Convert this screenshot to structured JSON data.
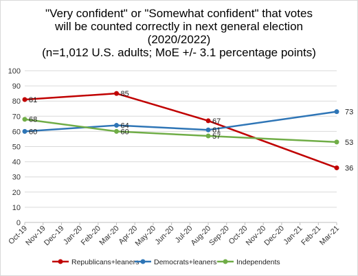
{
  "title_lines": [
    "\"Very confident\" or \"Somewhat confident\" that votes",
    "will be counted correctly in next general election",
    "(2020/2022)",
    "(n=1,012 U.S. adults; MoE +/- 3.1 percentage points)"
  ],
  "chart_data": {
    "type": "line",
    "title": "\"Very confident\" or \"Somewhat confident\" that votes will be counted correctly in next general election (2020/2022) (n=1,012 U.S. adults; MoE +/- 3.1 percentage points)",
    "categories": [
      "Oct-19",
      "Nov-19",
      "Dec-19",
      "Jan-20",
      "Feb-20",
      "Mar-20",
      "Apr-20",
      "May-20",
      "Jun-20",
      "Jul-20",
      "Aug-20",
      "Sep-20",
      "Oct-20",
      "Nov-20",
      "Dec-20",
      "Jan-21",
      "Feb-21",
      "Mar-21"
    ],
    "yticks": [
      0,
      10,
      20,
      30,
      40,
      50,
      60,
      70,
      80,
      90,
      100
    ],
    "ylim": [
      0,
      100
    ],
    "grid": true,
    "legend_position": "bottom",
    "series": [
      {
        "name": "Republicans+leaners",
        "color": "#c00000",
        "points": [
          {
            "x": "Oct-19",
            "y": 81
          },
          {
            "x": "Mar-20",
            "y": 85
          },
          {
            "x": "Aug-20",
            "y": 67
          },
          {
            "x": "Mar-21",
            "y": 36
          }
        ]
      },
      {
        "name": "Democrats+leaners",
        "color": "#2e75b6",
        "points": [
          {
            "x": "Oct-19",
            "y": 60
          },
          {
            "x": "Mar-20",
            "y": 64
          },
          {
            "x": "Aug-20",
            "y": 61
          },
          {
            "x": "Mar-21",
            "y": 73
          }
        ]
      },
      {
        "name": "Independents",
        "color": "#70ad47",
        "points": [
          {
            "x": "Oct-19",
            "y": 68
          },
          {
            "x": "Mar-20",
            "y": 60
          },
          {
            "x": "Aug-20",
            "y": 57
          },
          {
            "x": "Mar-21",
            "y": 53
          }
        ]
      }
    ]
  }
}
